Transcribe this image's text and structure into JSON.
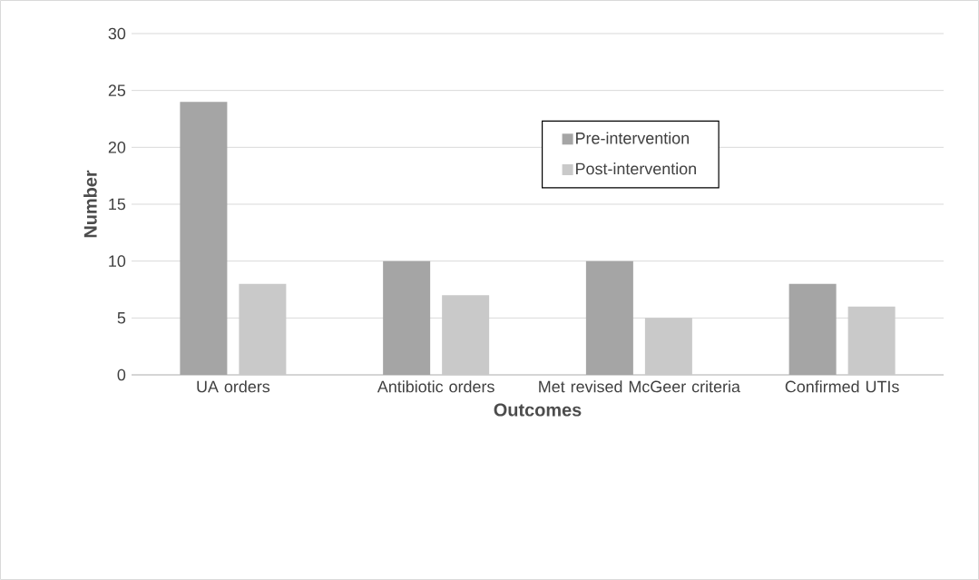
{
  "chart_data": {
    "type": "bar",
    "xlabel": "Outcomes",
    "ylabel": "Number",
    "categories": [
      "UA orders",
      "Antibiotic orders",
      "Met revised McGeer criteria",
      "Confirmed UTIs"
    ],
    "series": [
      {
        "name": "Pre-intervention",
        "color": "#a5a5a5",
        "values": [
          24,
          10,
          10,
          8
        ]
      },
      {
        "name": "Post-intervention",
        "color": "#c9c9c9",
        "values": [
          8,
          7,
          5,
          6
        ]
      }
    ],
    "ylim": [
      0,
      30
    ],
    "yticks": [
      0,
      5,
      10,
      15,
      20,
      25,
      30
    ],
    "grid": "y",
    "legend": "top right"
  }
}
